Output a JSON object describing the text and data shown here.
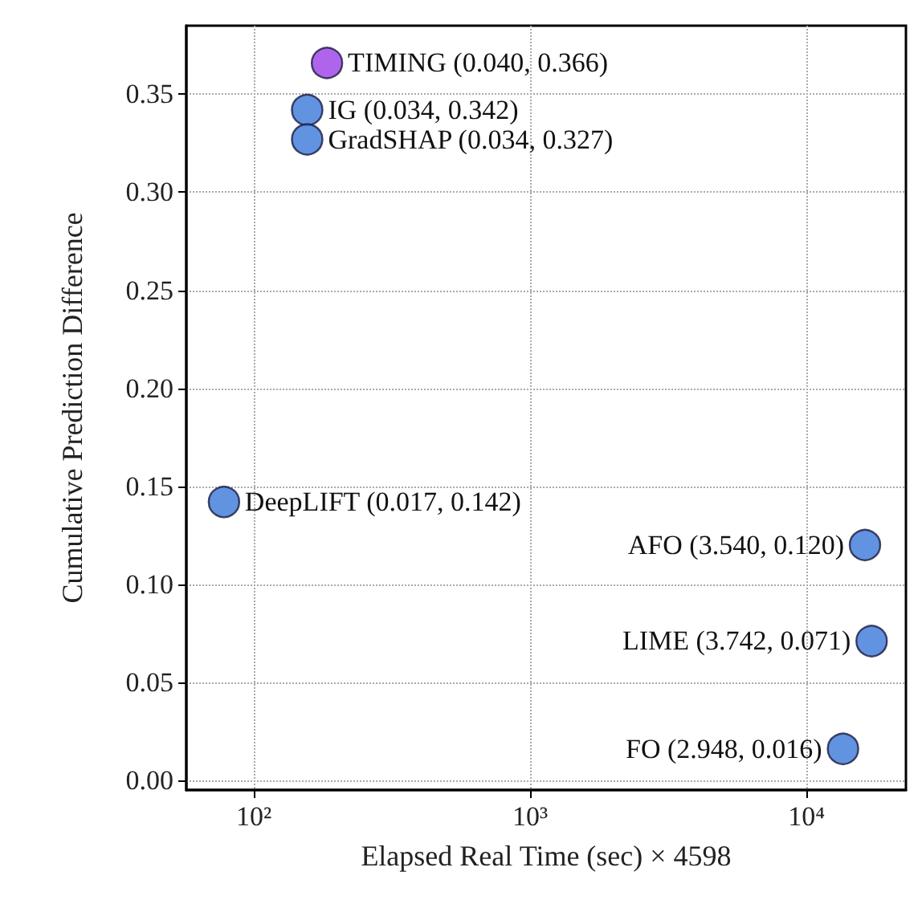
{
  "chart_data": {
    "type": "scatter",
    "xlabel": "Elapsed Real Time (sec) × 4598",
    "ylabel": "Cumulative Prediction Difference",
    "x": [
      184,
      156,
      156,
      78,
      16277,
      17206,
      13555
    ],
    "series": [
      {
        "values": [
          0.366,
          0.342,
          0.327,
          0.142,
          0.12,
          0.071,
          0.016
        ],
        "colors": [
          "#9b3fe6",
          "#3a78d8",
          "#3a78d8",
          "#3a78d8",
          "#3a78d8",
          "#3a78d8",
          "#3a78d8"
        ]
      }
    ],
    "annotations": [
      {
        "text": "TIMING (0.040, 0.366)",
        "x": 184,
        "y": 0.366
      },
      {
        "text": "IG (0.034, 0.342)",
        "x": 156,
        "y": 0.342
      },
      {
        "text": "GradSHAP (0.034, 0.327)",
        "x": 156,
        "y": 0.327
      },
      {
        "text": "DeepLIFT (0.017, 0.142)",
        "x": 78,
        "y": 0.142
      },
      {
        "text": "AFO (3.540, 0.120)",
        "x": 16277,
        "y": 0.12
      },
      {
        "text": "LIME (3.742, 0.071)",
        "x": 17206,
        "y": 0.071
      },
      {
        "text": "FO (2.948, 0.016)",
        "x": 13555,
        "y": 0.016
      }
    ],
    "log": "x",
    "xlim": [
      57,
      22900
    ],
    "xticks": [
      {
        "value": 100,
        "label": "10²"
      },
      {
        "value": 1000,
        "label": "10³"
      },
      {
        "value": 10000,
        "label": "10⁴"
      }
    ],
    "ylim": [
      -0.005,
      0.385
    ],
    "yticks": [
      {
        "value": 0,
        "label": "0.00"
      },
      {
        "value": 0.05,
        "label": "0.05"
      },
      {
        "value": 0.1,
        "label": "0.10"
      },
      {
        "value": 0.15,
        "label": "0.15"
      },
      {
        "value": 0.2,
        "label": "0.20"
      },
      {
        "value": 0.25,
        "label": "0.25"
      },
      {
        "value": 0.3,
        "label": "0.30"
      },
      {
        "value": 0.35,
        "label": "0.35"
      }
    ],
    "grid": true,
    "marker": "circle"
  }
}
